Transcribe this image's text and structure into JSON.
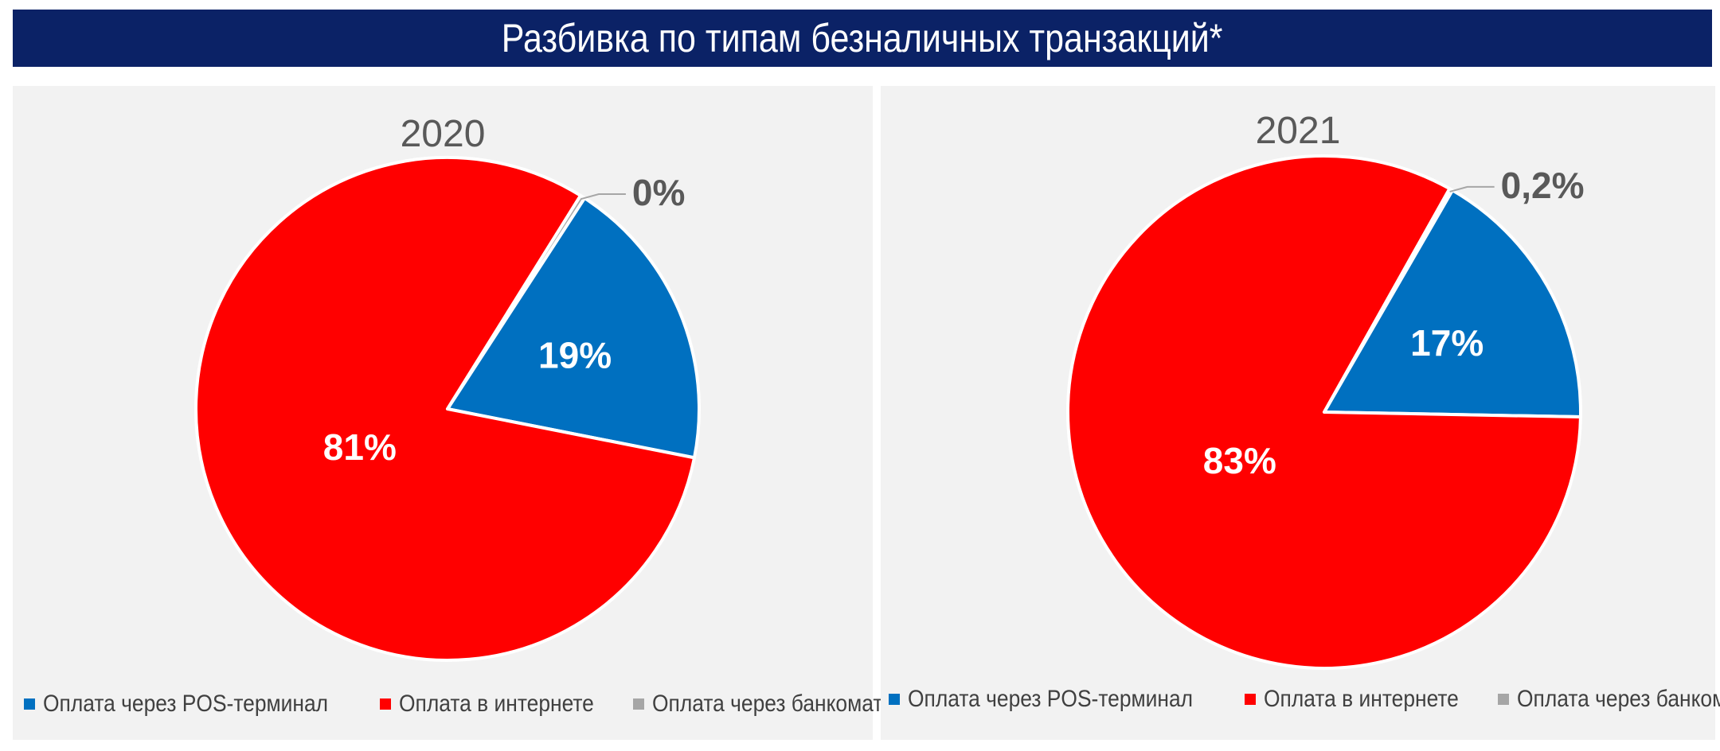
{
  "header": {
    "title": "Разбивка по типам безналичных транзакций*"
  },
  "colors": {
    "banner": "#0b2266",
    "pos": "#0070c0",
    "internet": "#ff0000",
    "atm": "#a6a6a6",
    "panel": "#f2f2f2"
  },
  "legend": [
    {
      "label": "Оплата через POS-терминал",
      "color": "#0070c0"
    },
    {
      "label": "Оплата в интернете",
      "color": "#ff0000"
    },
    {
      "label": "Оплата через банкомат",
      "color": "#a6a6a6"
    }
  ],
  "chart_data": [
    {
      "type": "pie",
      "title": "2020",
      "slices": [
        {
          "name": "Оплата через POS-терминал",
          "value": 19,
          "label": "19%",
          "color": "#0070c0"
        },
        {
          "name": "Оплата в интернете",
          "value": 81,
          "label": "81%",
          "color": "#ff0000"
        },
        {
          "name": "Оплата через банкомат",
          "value": 0.3,
          "label": "0%",
          "color": "#a6a6a6"
        }
      ]
    },
    {
      "type": "pie",
      "title": "2021",
      "slices": [
        {
          "name": "Оплата через POS-терминал",
          "value": 17,
          "label": "17%",
          "color": "#0070c0"
        },
        {
          "name": "Оплата в интернете",
          "value": 83,
          "label": "83%",
          "color": "#ff0000"
        },
        {
          "name": "Оплата через банкомат",
          "value": 0.2,
          "label": "0,2%",
          "color": "#a6a6a6"
        }
      ]
    }
  ]
}
